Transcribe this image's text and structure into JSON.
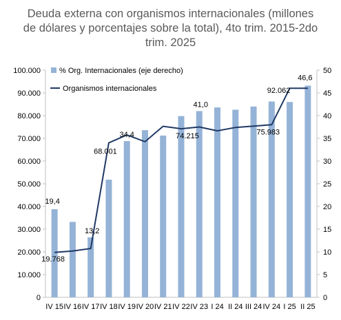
{
  "title_lines": [
    "Deuda externa con organismos internacionales (millones",
    "de dólares y porcentajes sobre la total), 4to trim. 2015-2do",
    "trim. 2025"
  ],
  "colors": {
    "bar": "#95b3d7",
    "line": "#1f3864",
    "axis": "#bfbfbf"
  },
  "chart_data": {
    "type": "bar",
    "title": "Deuda externa con organismos internacionales (millones de dólares y porcentajes sobre la total), 4to trim. 2015-2do trim. 2025",
    "categories": [
      "IV 15",
      "IV 16",
      "IV 17",
      "IV 18",
      "IV 19",
      "IV 20",
      "IV 21",
      "IV 22",
      "IV 23",
      "I 24",
      "II 24",
      "III 24",
      "IV 24",
      "I 25",
      "II 25"
    ],
    "series": [
      {
        "name": "% Org. Internacionales (eje derecho)",
        "type": "bar",
        "axis": "right",
        "values": [
          19.4,
          16.6,
          13.2,
          25.9,
          34.4,
          36.8,
          35.6,
          39.9,
          41.0,
          41.8,
          41.3,
          42.0,
          43.1,
          43.0,
          46.6
        ]
      },
      {
        "name": "Organismos internacionales",
        "type": "line",
        "axis": "left",
        "values": [
          19768,
          20400,
          21500,
          68001,
          71500,
          68500,
          75300,
          74215,
          75000,
          73300,
          74800,
          75400,
          75983,
          92062,
          92062
        ]
      }
    ],
    "y_left": {
      "min": 0,
      "max": 100000,
      "step": 10000,
      "tick_labels": [
        "0",
        "10.000",
        "20.000",
        "30.000",
        "40.000",
        "50.000",
        "60.000",
        "70.000",
        "80.000",
        "90.000",
        "100.000"
      ]
    },
    "y_right": {
      "min": 0,
      "max": 50,
      "step": 5,
      "tick_labels": [
        "0",
        "5",
        "10",
        "15",
        "20",
        "25",
        "30",
        "35",
        "40",
        "45",
        "50"
      ]
    },
    "data_labels": {
      "bars": [
        {
          "index": 0,
          "text": "19,4"
        },
        {
          "index": 2,
          "text": "13,2"
        },
        {
          "index": 4,
          "text": "34,4"
        },
        {
          "index": 8,
          "text": "41,0"
        },
        {
          "index": 14,
          "text": "46,6"
        }
      ],
      "line": [
        {
          "index": 0,
          "text": "19.768"
        },
        {
          "index": 3,
          "text": "68.001"
        },
        {
          "index": 7,
          "text": "74.215"
        },
        {
          "index": 12,
          "text": "75.983"
        },
        {
          "index": 13,
          "text": "92.062"
        }
      ]
    },
    "legend": {
      "position": "top-left"
    },
    "grid": false
  }
}
